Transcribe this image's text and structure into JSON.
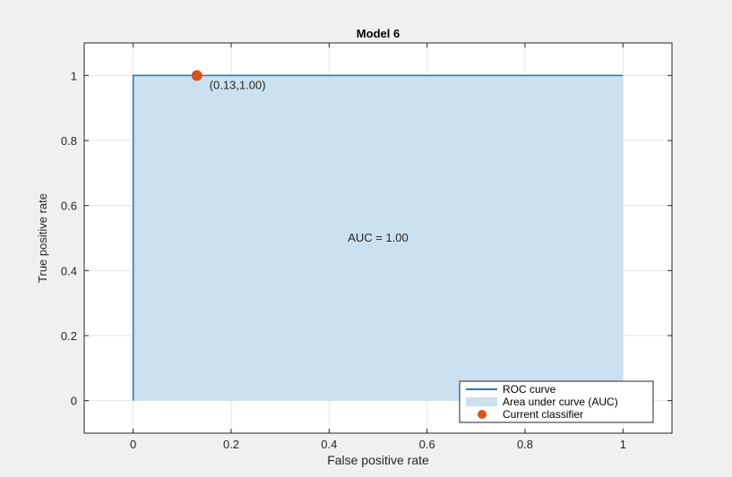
{
  "chart_data": {
    "type": "line",
    "title": "Model 6",
    "xlabel": "False positive rate",
    "ylabel": "True positive rate",
    "xlim": [
      -0.1,
      1.1
    ],
    "ylim": [
      -0.1,
      1.1
    ],
    "xticks": [
      0,
      0.2,
      0.4,
      0.6,
      0.8,
      1
    ],
    "xtick_labels": [
      "0",
      "0.2",
      "0.4",
      "0.6",
      "0.8",
      "1"
    ],
    "yticks": [
      0,
      0.2,
      0.4,
      0.6,
      0.8,
      1
    ],
    "ytick_labels": [
      "0",
      "0.2",
      "0.4",
      "0.6",
      "0.8",
      "1"
    ],
    "grid": true,
    "legend_position": "bottom-right",
    "roc_curve": {
      "name": "ROC curve",
      "color": "#2b7bb9",
      "x": [
        0,
        0,
        1
      ],
      "y": [
        0,
        1,
        1
      ]
    },
    "area": {
      "name": "Area under curve (AUC)",
      "color": "#cbe1ef",
      "auc_label": "AUC = 1.00",
      "label_at": [
        0.5,
        0.5
      ]
    },
    "current_classifier": {
      "name": "Current classifier",
      "color": "#d95319",
      "x": 0.13,
      "y": 1.0,
      "label": "(0.13,1.00)"
    }
  }
}
